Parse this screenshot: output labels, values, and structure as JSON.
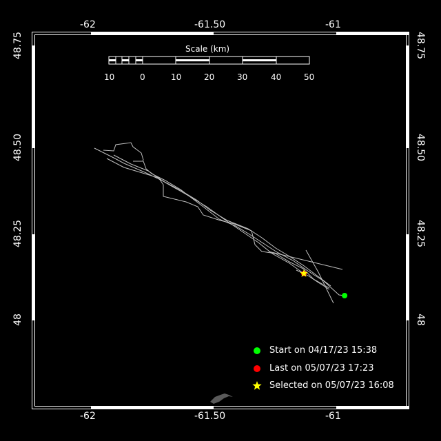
{
  "map": {
    "lon_ticks": [
      "-62",
      "-61.50",
      "-61"
    ],
    "lat_ticks": [
      "48.75",
      "48.50",
      "48.25",
      "48"
    ],
    "extent": {
      "lon": [
        -62.24,
        -60.7
      ],
      "lat": [
        47.74,
        48.85
      ]
    },
    "colors": {
      "track": "#c0c0c0",
      "start": "#00ff00",
      "last": "#ff0000",
      "selected": "#ffff00",
      "land": "#5a5a5a",
      "background": "#000000"
    }
  },
  "scale_bar": {
    "title": "Scale (km)",
    "labels": [
      "10",
      "0",
      "10",
      "20",
      "30",
      "40",
      "50"
    ]
  },
  "markers": {
    "start": {
      "lon": -60.966,
      "lat": 48.072
    },
    "last": {
      "lon": -61.132,
      "lat": 48.136
    },
    "selected": {
      "lon": -61.132,
      "lat": 48.136
    }
  },
  "legend": {
    "start": "Start on 04/17/23 15:38",
    "last": "Last on 05/07/23 17:23",
    "selected": "Selected on 05/07/23 16:08"
  }
}
